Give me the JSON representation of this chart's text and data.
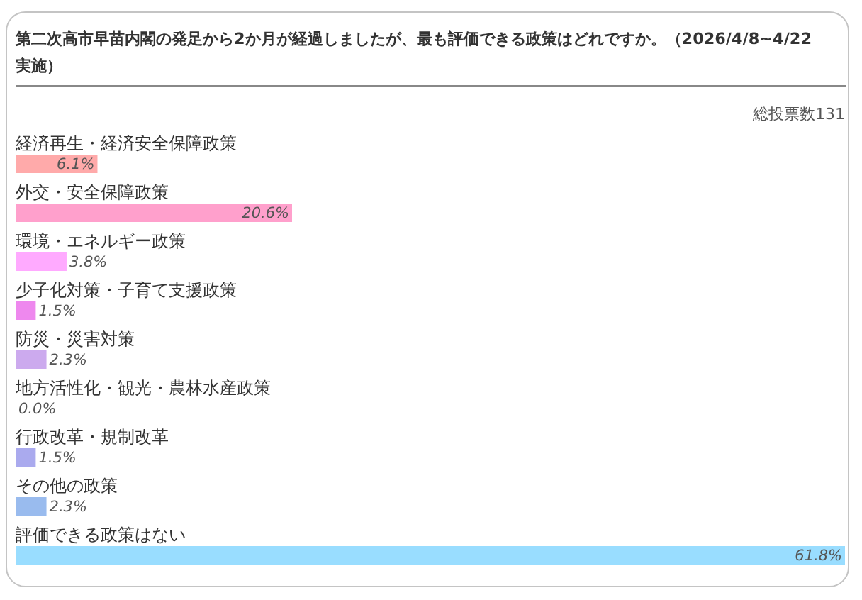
{
  "chart_data": {
    "type": "bar",
    "orientation": "horizontal",
    "title": "第二次高市早苗内閣の発足から2か月が経過しましたが、最も評価できる政策はどれですか。（2026/4/8~4/22実施）",
    "annotations": [
      "総投票数131"
    ],
    "categories": [
      "経済再生・経済安全保障政策",
      "外交・安全保障政策",
      "環境・エネルギー政策",
      "少子化対策・子育て支援政策",
      "防災・災害対策",
      "地方活性化・観光・農林水産政策",
      "行政改革・規制改革",
      "その他の政策",
      "評価できる政策はない"
    ],
    "values": [
      6.1,
      20.6,
      3.8,
      1.5,
      2.3,
      0.0,
      1.5,
      2.3,
      61.8
    ],
    "value_labels": [
      "6.1%",
      "20.6%",
      "3.8%",
      "1.5%",
      "2.3%",
      "0.0%",
      "1.5%",
      "2.3%",
      "61.8%"
    ],
    "colors": [
      "#ffaaaa",
      "#ffa0cc",
      "#ffaaff",
      "#ee88ee",
      "#ccaaee",
      null,
      "#aaaaee",
      "#99bbee",
      "#99ddff"
    ]
  }
}
